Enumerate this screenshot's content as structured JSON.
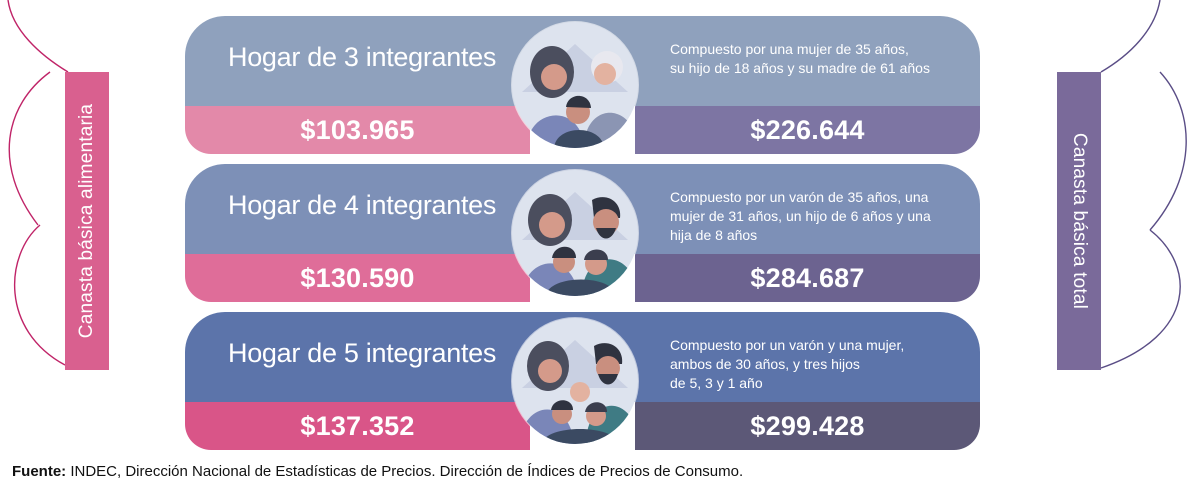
{
  "side_labels": {
    "left": "Canasta básica alimentaria",
    "right": "Canasta básica total"
  },
  "households": [
    {
      "title": "Hogar de 3 integrantes",
      "cba": "$103.965",
      "cbt": "$226.644",
      "desc_lines": [
        "Compuesto por una mujer de 35 años,",
        "su hijo de 18 años y su madre de 61 años"
      ]
    },
    {
      "title": "Hogar de 4 integrantes",
      "cba": "$130.590",
      "cbt": "$284.687",
      "desc_lines": [
        "Compuesto por un varón de 35 años, una",
        "mujer de 31 años, un hijo de 6 años y una",
        "hija de 8 años"
      ]
    },
    {
      "title": "Hogar de 5 integrantes",
      "cba": "$137.352",
      "cbt": "$299.428",
      "desc_lines": [
        "Compuesto por un varón y una mujer,",
        "ambos de 30 años, y tres hijos",
        "de 5, 3 y 1 año"
      ]
    }
  ],
  "source": {
    "label": "Fuente:",
    "text": " INDEC, Dirección Nacional de Estadísticas de Precios. Dirección de Índices de Precios de Consumo."
  },
  "colors": {
    "cba_tab": "#d9608f",
    "cbt_tab": "#7a6a9a"
  },
  "icons": [
    "family-illustration"
  ]
}
